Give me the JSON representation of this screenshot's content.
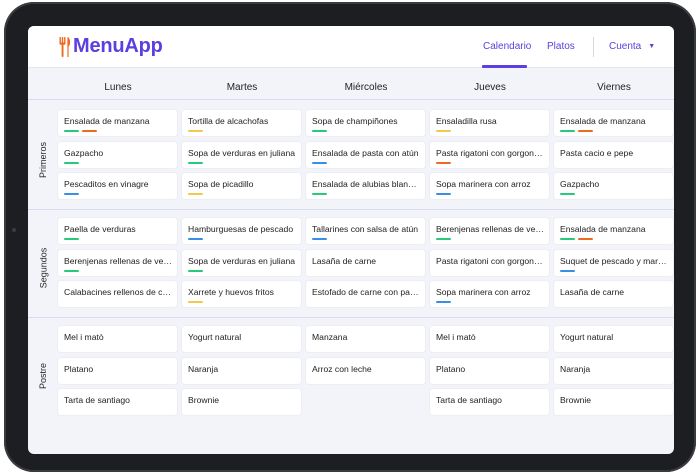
{
  "app": {
    "name": "MenuApp",
    "brand_color": "#5b3fe0"
  },
  "nav": {
    "calendario": "Calendario",
    "platos": "Platos",
    "cuenta": "Cuenta",
    "caret": "▼"
  },
  "tag_colors": {
    "green": "#27c97a",
    "orange": "#ee6a1e",
    "yellow": "#f2c94c",
    "blue": "#3a8ee6"
  },
  "days": [
    "Lunes",
    "Martes",
    "Miércoles",
    "Jueves",
    "Viernes"
  ],
  "sections": [
    {
      "label": "Primeros",
      "rows": [
        [
          {
            "name": "Ensalada de manzana",
            "tags": [
              "green",
              "orange"
            ]
          },
          {
            "name": "Tortilla de alcachofas",
            "tags": [
              "yellow"
            ]
          },
          {
            "name": "Sopa de champiñones",
            "tags": [
              "green"
            ]
          },
          {
            "name": "Ensaladilla rusa",
            "tags": [
              "yellow"
            ]
          },
          {
            "name": "Ensalada de manzana",
            "tags": [
              "green",
              "orange"
            ]
          }
        ],
        [
          {
            "name": "Gazpacho",
            "tags": [
              "green"
            ]
          },
          {
            "name": "Sopa de verduras en juliana",
            "tags": [
              "green"
            ]
          },
          {
            "name": "Ensalada de pasta con atún",
            "tags": [
              "blue"
            ]
          },
          {
            "name": "Pasta rigatoni con gorgonzola",
            "tags": [
              "orange"
            ]
          },
          {
            "name": "Pasta cacio e pepe",
            "tags": []
          }
        ],
        [
          {
            "name": "Pescaditos en vinagre",
            "tags": [
              "blue"
            ]
          },
          {
            "name": "Sopa de picadillo",
            "tags": [
              "yellow"
            ]
          },
          {
            "name": "Ensalada de alubias blancas",
            "tags": [
              "green"
            ]
          },
          {
            "name": "Sopa marinera con arroz",
            "tags": [
              "blue"
            ]
          },
          {
            "name": "Gazpacho",
            "tags": [
              "green"
            ]
          }
        ]
      ]
    },
    {
      "label": "Segundos",
      "rows": [
        [
          {
            "name": "Paella de verduras",
            "tags": [
              "green"
            ]
          },
          {
            "name": "Hamburguesas de pescado",
            "tags": [
              "blue"
            ]
          },
          {
            "name": "Tallarines con salsa de atún",
            "tags": [
              "blue"
            ]
          },
          {
            "name": "Berenjenas rellenas de verduras",
            "tags": [
              "green"
            ]
          },
          {
            "name": "Ensalada de manzana",
            "tags": [
              "green",
              "orange"
            ]
          }
        ],
        [
          {
            "name": "Berenjenas rellenas de verduras",
            "tags": [
              "green"
            ]
          },
          {
            "name": "Sopa de verduras en juliana",
            "tags": [
              "green"
            ]
          },
          {
            "name": "Lasaña de carne",
            "tags": []
          },
          {
            "name": "Pasta rigatoni con gorgonzola",
            "tags": []
          },
          {
            "name": "Suquet de pescado y marisco",
            "tags": [
              "blue"
            ]
          }
        ],
        [
          {
            "name": "Calabacines rellenos de carne",
            "tags": []
          },
          {
            "name": "Xarrete y huevos fritos",
            "tags": [
              "yellow"
            ]
          },
          {
            "name": "Estofado de carne con patatas",
            "tags": []
          },
          {
            "name": "Sopa marinera con arroz",
            "tags": [
              "blue"
            ]
          },
          {
            "name": "Lasaña de carne",
            "tags": []
          }
        ]
      ]
    },
    {
      "label": "Postre",
      "rows": [
        [
          {
            "name": "Mel i matò",
            "tags": []
          },
          {
            "name": "Yogurt natural",
            "tags": []
          },
          {
            "name": "Manzana",
            "tags": []
          },
          {
            "name": "Mel i matò",
            "tags": []
          },
          {
            "name": "Yogurt natural",
            "tags": []
          }
        ],
        [
          {
            "name": "Platano",
            "tags": []
          },
          {
            "name": "Naranja",
            "tags": []
          },
          {
            "name": "Arroz con leche",
            "tags": []
          },
          {
            "name": "Platano",
            "tags": []
          },
          {
            "name": "Naranja",
            "tags": []
          }
        ],
        [
          {
            "name": "Tarta de santiago",
            "tags": []
          },
          {
            "name": "Brownie",
            "tags": []
          },
          null,
          {
            "name": "Tarta de santiago",
            "tags": []
          },
          {
            "name": "Brownie",
            "tags": []
          }
        ]
      ]
    }
  ]
}
